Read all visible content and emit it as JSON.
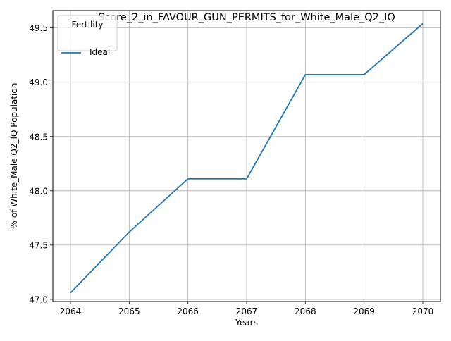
{
  "chart_data": {
    "type": "line",
    "title": "Score_2_in_FAVOUR_GUN_PERMITS_for_White_Male_Q2_IQ",
    "xlabel": "Years",
    "ylabel": "% of White_Male Q2_IQ Population",
    "x": [
      2064,
      2065,
      2066,
      2067,
      2068,
      2069,
      2070
    ],
    "xlim": [
      2063.7,
      2070.3
    ],
    "ylim": [
      46.98,
      49.66
    ],
    "y_ticks": [
      "47.0",
      "47.5",
      "48.0",
      "48.5",
      "49.0",
      "49.5"
    ],
    "y_tick_values": [
      47.0,
      47.5,
      48.0,
      48.5,
      49.0,
      49.5
    ],
    "x_ticks": [
      "2064",
      "2065",
      "2066",
      "2067",
      "2068",
      "2069",
      "2070"
    ],
    "series": [
      {
        "name": "Ideal",
        "color": "#1f77b4",
        "values": [
          47.06,
          47.62,
          48.11,
          48.11,
          49.07,
          49.07,
          49.54
        ]
      }
    ],
    "grid": true,
    "legend": {
      "title": "Fertility",
      "placement": "top-left"
    }
  }
}
